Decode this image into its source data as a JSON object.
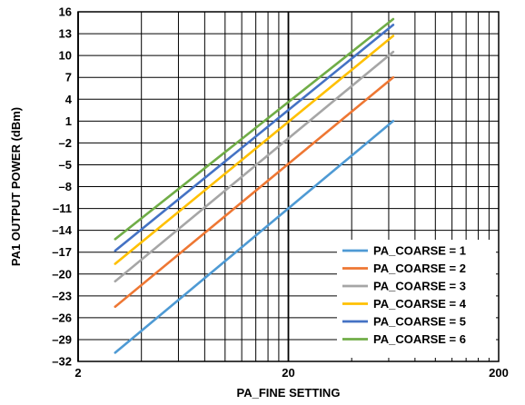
{
  "chart_data": {
    "type": "line",
    "xscale": "log",
    "xlim": [
      2,
      200
    ],
    "ylim": [
      -32,
      16
    ],
    "xlabel": "PA_FINE SETTING",
    "ylabel": "PA1 OUTPUT POWER (dBm)",
    "x_ticks": [
      "2",
      "20",
      "200"
    ],
    "y_ticks": [
      "16",
      "13",
      "10",
      "7",
      "4",
      "1",
      "–2",
      "–5",
      "–8",
      "–11",
      "–14",
      "–17",
      "–20",
      "–23",
      "–26",
      "–29",
      "–32"
    ],
    "y_tick_values": [
      16,
      13,
      10,
      7,
      4,
      1,
      -2,
      -5,
      -8,
      -11,
      -14,
      -17,
      -20,
      -23,
      -26,
      -29,
      -32
    ],
    "grid": true,
    "legend_position": "bottom-right",
    "x": [
      3,
      63
    ],
    "series": [
      {
        "name": "PA_COARSE = 1",
        "color": "#4e9ad4",
        "values": [
          -30.8,
          1.0
        ]
      },
      {
        "name": "PA_COARSE = 2",
        "color": "#ee7733",
        "values": [
          -24.5,
          7.0
        ]
      },
      {
        "name": "PA_COARSE = 3",
        "color": "#a6a6a6",
        "values": [
          -21.0,
          10.5
        ]
      },
      {
        "name": "PA_COARSE = 4",
        "color": "#ffc000",
        "values": [
          -18.6,
          12.7
        ]
      },
      {
        "name": "PA_COARSE = 5",
        "color": "#4472c4",
        "values": [
          -16.8,
          14.2
        ]
      },
      {
        "name": "PA_COARSE = 6",
        "color": "#70ad47",
        "values": [
          -15.2,
          15.0
        ]
      }
    ]
  }
}
